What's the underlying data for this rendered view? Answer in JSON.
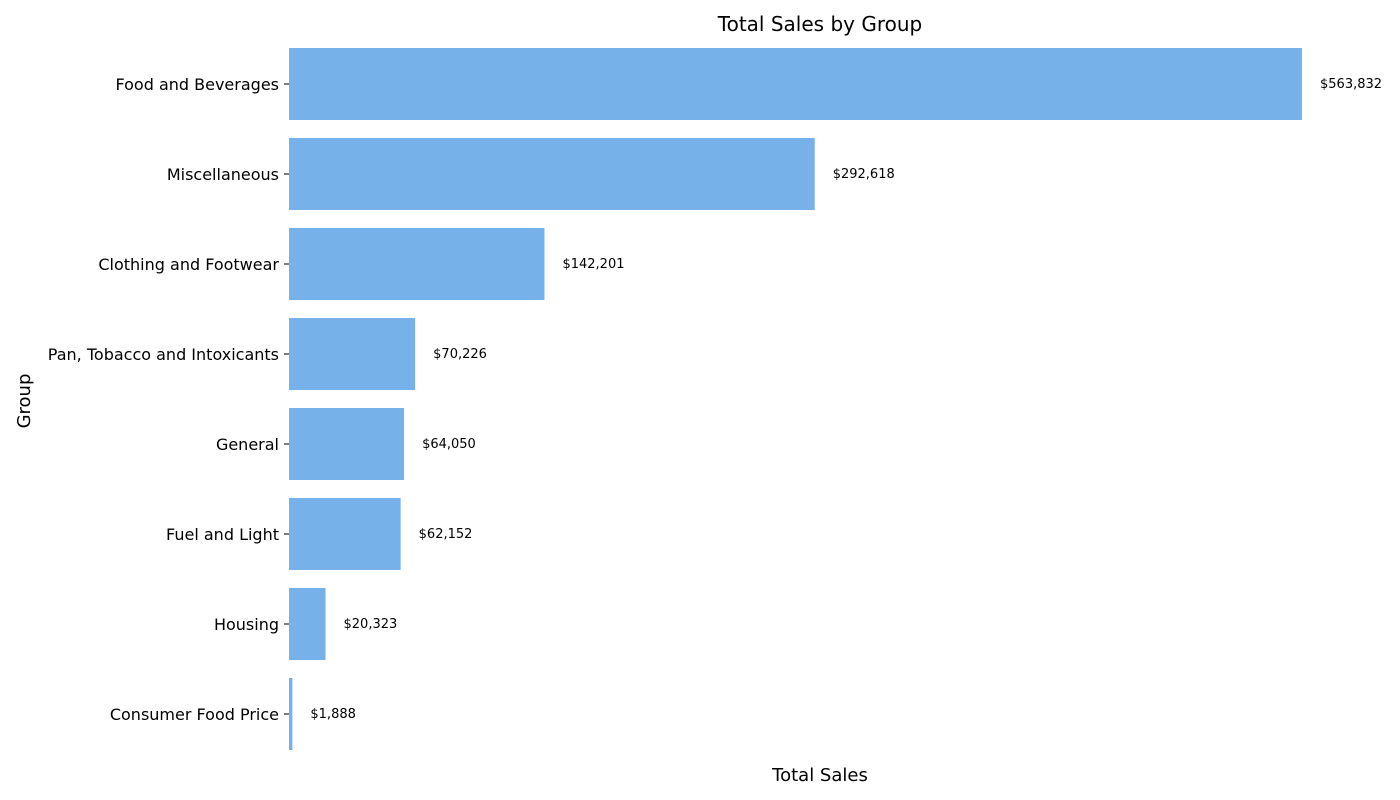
{
  "chart_data": {
    "type": "bar",
    "orientation": "horizontal",
    "title": "Total Sales by Group",
    "xlabel": "Total Sales",
    "ylabel": "Group",
    "categories": [
      "Food and Beverages",
      "Miscellaneous",
      "Clothing and Footwear",
      "Pan, Tobacco and Intoxicants",
      "General",
      "Fuel and Light",
      "Housing",
      "Consumer Food Price"
    ],
    "values": [
      563832,
      292618,
      142201,
      70226,
      64050,
      62152,
      20323,
      1888
    ],
    "value_labels": [
      "$563,832",
      "$292,618",
      "$142,201",
      "$70,226",
      "$64,050",
      "$62,152",
      "$20,323",
      "$1,888"
    ],
    "xlim": [
      0,
      563832
    ],
    "grid": false,
    "x_ticks_visible": false,
    "bar_color": "#77b1ea"
  }
}
